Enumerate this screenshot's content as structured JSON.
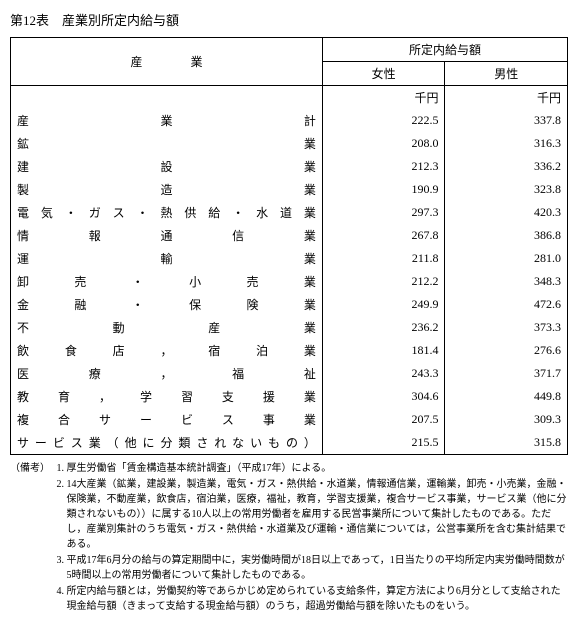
{
  "title": "第12表　産業別所定内給与額",
  "headers": {
    "industry": "産　　　　業",
    "group": "所定内給与額",
    "female": "女性",
    "male": "男性",
    "unit": "千円"
  },
  "rows": [
    {
      "industry": "産業計",
      "female": "222.5",
      "male": "337.8"
    },
    {
      "industry": "鉱業",
      "female": "208.0",
      "male": "316.3"
    },
    {
      "industry": "建設業",
      "female": "212.3",
      "male": "336.2"
    },
    {
      "industry": "製造業",
      "female": "190.9",
      "male": "323.8"
    },
    {
      "industry": "電気・ガス・熱供給・水道業",
      "female": "297.3",
      "male": "420.3"
    },
    {
      "industry": "情報通信業",
      "female": "267.8",
      "male": "386.8"
    },
    {
      "industry": "運輸業",
      "female": "211.8",
      "male": "281.0"
    },
    {
      "industry": "卸売・小売業",
      "female": "212.2",
      "male": "348.3"
    },
    {
      "industry": "金融・保険業",
      "female": "249.9",
      "male": "472.6"
    },
    {
      "industry": "不動産業",
      "female": "236.2",
      "male": "373.3"
    },
    {
      "industry": "飲食店，宿泊業",
      "female": "181.4",
      "male": "276.6"
    },
    {
      "industry": "医療，福祉",
      "female": "243.3",
      "male": "371.7"
    },
    {
      "industry": "教育，学習支援業",
      "female": "304.6",
      "male": "449.8"
    },
    {
      "industry": "複合サービス事業",
      "female": "207.5",
      "male": "309.3"
    },
    {
      "industry": "サービス業（他に分類されないもの）",
      "female": "215.5",
      "male": "315.8"
    }
  ],
  "notes": {
    "label": "（備考）",
    "items": [
      "厚生労働省「賃金構造基本統計調査」（平成17年）による。",
      "14大産業（鉱業，建設業，製造業，電気・ガス・熱供給・水道業，情報通信業，運輸業，卸売・小売業，金融・保険業，不動産業，飲食店，宿泊業，医療，福祉，教育，学習支援業，複合サービス事業，サービス業（他に分類されないもの））に属する10人以上の常用労働者を雇用する民営事業所について集計したものである。ただし，産業別集計のうち電気・ガス・熱供給・水道業及び運輸・通信業については，公営事業所を含む集計結果である。",
      "平成17年6月分の給与の算定期間中に，実労働時間が18日以上であって，1日当たりの平均所定内実労働時間数が5時間以上の常用労働者について集計したものである。",
      "所定内給与額とは，労働契約等であらかじめ定められている支給条件，算定方法により6月分として支給された現金給与額（きまって支給する現金給与額）のうち，超過労働給与額を除いたものをいう。"
    ]
  }
}
